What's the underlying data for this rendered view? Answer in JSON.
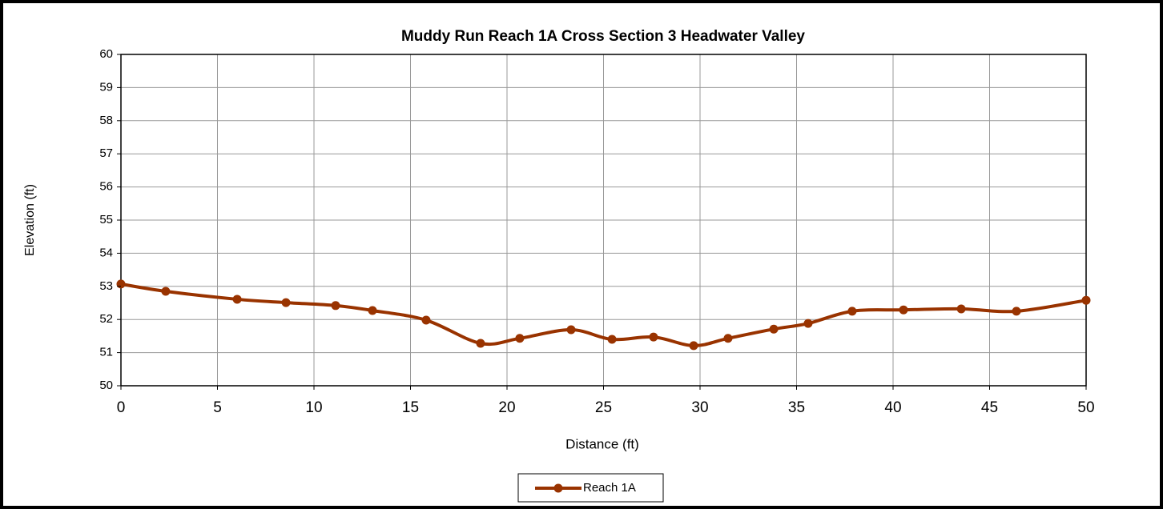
{
  "chart_data": {
    "type": "line",
    "title": "Muddy Run Reach 1A Cross Section 3 Headwater Valley",
    "x_label": "Distance (ft)",
    "y_label": "Elevation (ft)",
    "x": [
      0,
      2.32,
      6.02,
      8.55,
      11.12,
      13.03,
      15.81,
      18.63,
      20.66,
      23.32,
      25.44,
      27.59,
      29.67,
      31.45,
      33.82,
      35.6,
      37.88,
      40.54,
      43.53,
      46.39,
      50
    ],
    "series": [
      {
        "name": "Reach 1A",
        "color": "#993300",
        "values": [
          53.07,
          52.85,
          52.61,
          52.51,
          52.42,
          52.27,
          51.98,
          51.28,
          51.43,
          51.69,
          51.4,
          51.47,
          51.21,
          51.43,
          51.71,
          51.88,
          52.25,
          52.29,
          52.32,
          52.25,
          52.58
        ]
      }
    ],
    "xlim": [
      0,
      50
    ],
    "xticks": [
      0,
      5,
      10,
      15,
      20,
      25,
      30,
      35,
      40,
      45,
      50
    ],
    "ylim": [
      50,
      60
    ],
    "yticks": [
      50,
      51,
      52,
      53,
      54,
      55,
      56,
      57,
      58,
      59,
      60
    ],
    "grid": true,
    "legend": "bottom"
  }
}
